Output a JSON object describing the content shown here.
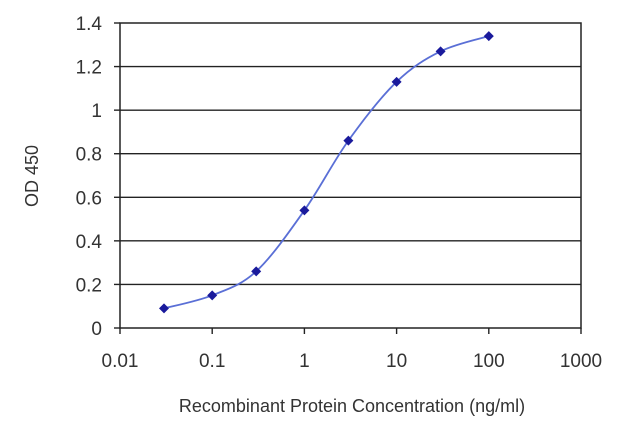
{
  "chart_data": {
    "type": "line",
    "xlabel": "Recombinant Protein Concentration (ng/ml)",
    "ylabel": "OD 450",
    "xscale": "log",
    "xlim": [
      0.01,
      1000
    ],
    "ylim": [
      0,
      1.4
    ],
    "grid": "horizontal",
    "legend": "none",
    "x_ticks": [
      0.01,
      0.1,
      1,
      10,
      100,
      1000
    ],
    "x_tick_labels": [
      "0.01",
      "0.1",
      "1",
      "10",
      "100",
      "1000"
    ],
    "y_ticks": [
      0,
      0.2,
      0.4,
      0.6,
      0.8,
      1,
      1.2,
      1.4
    ],
    "y_tick_labels": [
      "0",
      "0.2",
      "0.4",
      "0.6",
      "0.8",
      "1",
      "1.2",
      "1.4"
    ],
    "series": [
      {
        "x": [
          0.03,
          0.1,
          0.3,
          1,
          3,
          10,
          30,
          100
        ],
        "y": [
          0.09,
          0.15,
          0.26,
          0.54,
          0.86,
          1.13,
          1.27,
          1.34
        ]
      }
    ],
    "colors": {
      "line": "#5a6fd6",
      "marker": "#1a1a9c",
      "grid": "#222222",
      "axis": "#222222"
    }
  }
}
